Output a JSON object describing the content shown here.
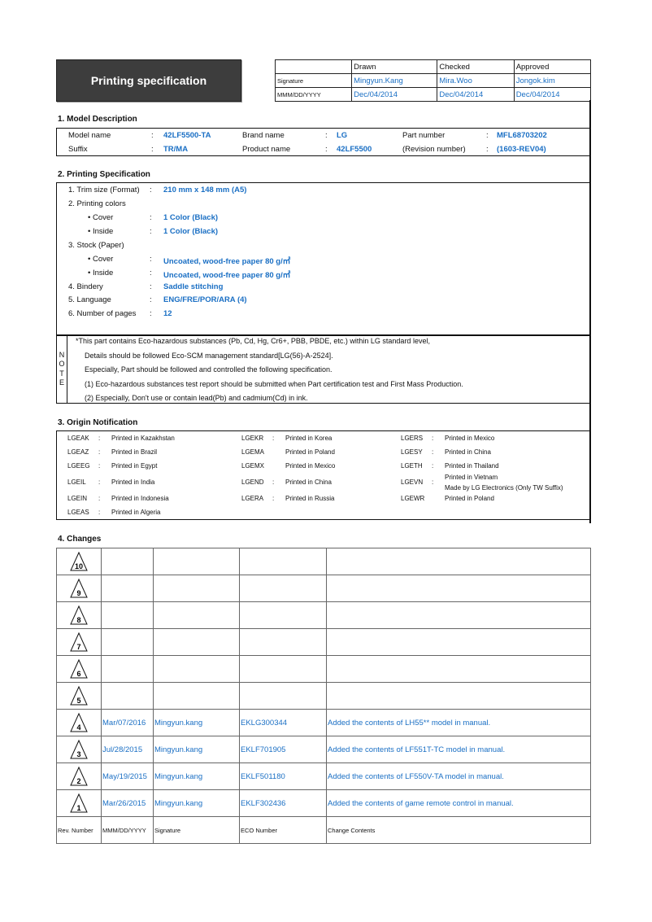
{
  "title": "Printing specification",
  "approval": {
    "headers": [
      "Drawn",
      "Checked",
      "Approved"
    ],
    "signature_label": "Signature",
    "date_label": "MMM/DD/YYYY",
    "signatures": [
      "Mingyun.Kang",
      "Mira.Woo",
      "Jongok.kim"
    ],
    "dates": [
      "Dec/04/2014",
      "Dec/04/2014",
      "Dec/04/2014"
    ]
  },
  "model": {
    "heading": "1. Model Description",
    "fields": [
      {
        "label": "Model name",
        "value": "42LF5500-TA"
      },
      {
        "label": "Brand name",
        "value": "LG"
      },
      {
        "label": "Part number",
        "value": "MFL68703202"
      },
      {
        "label": "Suffix",
        "value": "TR/MA"
      },
      {
        "label": "Product name",
        "value": "42LF5500"
      },
      {
        "label": "(Revision number)",
        "value": "(1603-REV04)"
      }
    ]
  },
  "printing": {
    "heading": "2. Printing Specification",
    "items": [
      {
        "label": "1. Trim size (Format)",
        "value": "210 mm x 148 mm (A5)"
      },
      {
        "label": "2. Printing colors",
        "value": ""
      },
      {
        "label": "• Cover",
        "value": "1 Color (Black)"
      },
      {
        "label": "• Inside",
        "value": "1 Color (Black)"
      },
      {
        "label": "3. Stock (Paper)",
        "value": ""
      },
      {
        "label": "• Cover",
        "value": "Uncoated, wood-free paper 80 g/㎡"
      },
      {
        "label": "• Inside",
        "value": "Uncoated, wood-free paper 80 g/㎡"
      },
      {
        "label": "4. Bindery",
        "value": "Saddle stitching"
      },
      {
        "label": "5. Language",
        "value": "ENG/FRE/POR/ARA (4)"
      },
      {
        "label": "6. Number of pages",
        "value": "12"
      }
    ],
    "note_letters": [
      "N",
      "O",
      "T",
      "E"
    ],
    "note_lines": [
      "*This part contains Eco-hazardous substances (Pb, Cd, Hg, Cr6+, PBB, PBDE, etc.) within LG standard level,",
      "Details should be followed Eco-SCM management standard[LG(56)-A-2524].",
      "Especially, Part should be followed and controlled the following specification.",
      "(1) Eco-hazardous substances test report should be submitted when Part certification test and First Mass Production.",
      "(2) Especially, Don't use or contain lead(Pb) and cadmium(Cd) in ink."
    ]
  },
  "origin": {
    "heading": "3. Origin Notification",
    "columns": [
      [
        {
          "code": "LGEAK",
          "sep": ":",
          "text": "Printed in Kazakhstan"
        },
        {
          "code": "LGEAZ",
          "sep": ":",
          "text": "Printed in Brazil"
        },
        {
          "code": "LGEEG",
          "sep": ":",
          "text": "Printed in Egypt"
        },
        {
          "code": "LGEIL",
          "sep": ":",
          "text": "Printed in India"
        },
        {
          "code": "LGEIN",
          "sep": ":",
          "text": "Printed in Indonesia"
        },
        {
          "code": "LGEAS",
          "sep": ":",
          "text": "Printed in Algeria"
        }
      ],
      [
        {
          "code": "LGEKR",
          "sep": ":",
          "text": "Printed in Korea"
        },
        {
          "code": "LGEMA",
          "sep": "",
          "text": "Printed in Poland"
        },
        {
          "code": "LGEMX",
          "sep": "",
          "text": "Printed in Mexico"
        },
        {
          "code": "LGEND",
          "sep": ":",
          "text": "Printed in China"
        },
        {
          "code": "LGERA",
          "sep": ":",
          "text": "Printed in Russia"
        }
      ],
      [
        {
          "code": "LGERS",
          "sep": ":",
          "text": "Printed in Mexico"
        },
        {
          "code": "LGESY",
          "sep": ":",
          "text": "Printed in China"
        },
        {
          "code": "LGETH",
          "sep": ":",
          "text": "Printed in Thailand"
        },
        {
          "code": "LGEVN",
          "sep": ":",
          "text": "Printed in Vietnam",
          "text2": "Made by LG Electronics (Only TW Suffix)"
        },
        {
          "code": "LGEWR",
          "sep": "",
          "text": "Printed in Poland"
        }
      ]
    ]
  },
  "changes": {
    "heading": "4. Changes",
    "rows": [
      {
        "rev": "10",
        "date": "",
        "signature": "",
        "eco": "",
        "contents": ""
      },
      {
        "rev": "9",
        "date": "",
        "signature": "",
        "eco": "",
        "contents": ""
      },
      {
        "rev": "8",
        "date": "",
        "signature": "",
        "eco": "",
        "contents": ""
      },
      {
        "rev": "7",
        "date": "",
        "signature": "",
        "eco": "",
        "contents": ""
      },
      {
        "rev": "6",
        "date": "",
        "signature": "",
        "eco": "",
        "contents": ""
      },
      {
        "rev": "5",
        "date": "",
        "signature": "",
        "eco": "",
        "contents": ""
      },
      {
        "rev": "4",
        "date": "Mar/07/2016",
        "signature": "Mingyun.kang",
        "eco": "EKLG300344",
        "contents": "Added the contents of LH55** model in manual."
      },
      {
        "rev": "3",
        "date": "Jul/28/2015",
        "signature": "Mingyun.kang",
        "eco": "EKLF701905",
        "contents": "Added the contents of LF551T-TC model in manual."
      },
      {
        "rev": "2",
        "date": "May/19/2015",
        "signature": "Mingyun.kang",
        "eco": "EKLF501180",
        "contents": "Added the contents of LF550V-TA model in manual."
      },
      {
        "rev": "1",
        "date": "Mar/26/2015",
        "signature": "Mingyun.kang",
        "eco": "EKLF302436",
        "contents": "Added the contents of game remote control in manual."
      }
    ],
    "footer": [
      "Rev. Number",
      "MMM/DD/YYYY",
      "Signature",
      "ECO Number",
      "Change Contents"
    ]
  },
  "colors": {
    "value_blue": "#1a6fc4",
    "title_bg": "#3d3d3d"
  }
}
